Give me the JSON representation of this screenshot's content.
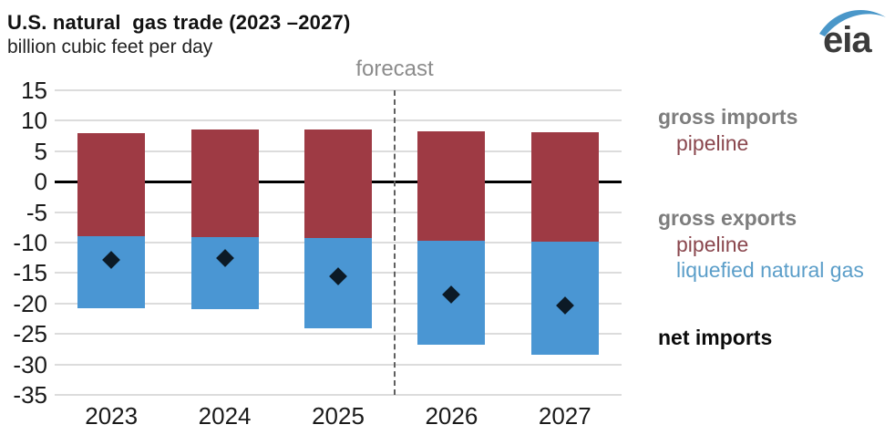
{
  "header": {
    "title": "U.S. natural  gas trade (2023 –2027)",
    "subtitle": "billion cubic feet per day",
    "logo_text": "eia"
  },
  "chart_data": {
    "type": "bar",
    "stacked": true,
    "title": "U.S. natural gas trade (2023 –2027)",
    "ylabel": "billion cubic feet per day",
    "categories": [
      "2023",
      "2024",
      "2025",
      "2026",
      "2027"
    ],
    "series": [
      {
        "name": "gross imports pipeline",
        "color": "#9e3a44",
        "values": [
          8.0,
          8.5,
          8.6,
          8.2,
          8.1
        ]
      },
      {
        "name": "gross exports pipeline",
        "color": "#9e3a44",
        "values": [
          -8.9,
          -9.1,
          -9.3,
          -9.7,
          -9.9
        ]
      },
      {
        "name": "gross exports liquefied natural gas",
        "color": "#4a96d3",
        "values": [
          -11.9,
          -11.9,
          -14.8,
          -17.0,
          -18.5
        ]
      }
    ],
    "markers": {
      "name": "net imports",
      "shape": "diamond",
      "color": "#0c1a26",
      "values": [
        -12.8,
        -12.5,
        -15.5,
        -18.5,
        -20.3
      ]
    },
    "y_ticks": [
      15,
      10,
      5,
      0,
      -5,
      -10,
      -15,
      -20,
      -25,
      -30,
      -35
    ],
    "ylim": [
      -35,
      15
    ],
    "grid": true,
    "legend_position": "right",
    "forecast_label": "forecast",
    "forecast_start_index": 3
  },
  "legend": {
    "gross_imports": "gross imports",
    "imports_pipeline": "pipeline",
    "gross_exports": "gross exports",
    "exports_pipeline": "pipeline",
    "lng": "liquefied natural gas",
    "net_imports": "net imports"
  },
  "colors": {
    "pipeline_bar": "#9e3a44",
    "lng_bar": "#4a96d3",
    "net_marker": "#0c1a26",
    "gridline": "#dcdcdc",
    "zero_line": "#000000",
    "forecast_text": "#8c8c8c",
    "legend_gray": "#7d7d7d",
    "legend_maroon": "#8a474e",
    "legend_blue": "#5b9ec9",
    "logo_swoosh": "#4a97c9",
    "logo_text": "#3b3b3b"
  }
}
